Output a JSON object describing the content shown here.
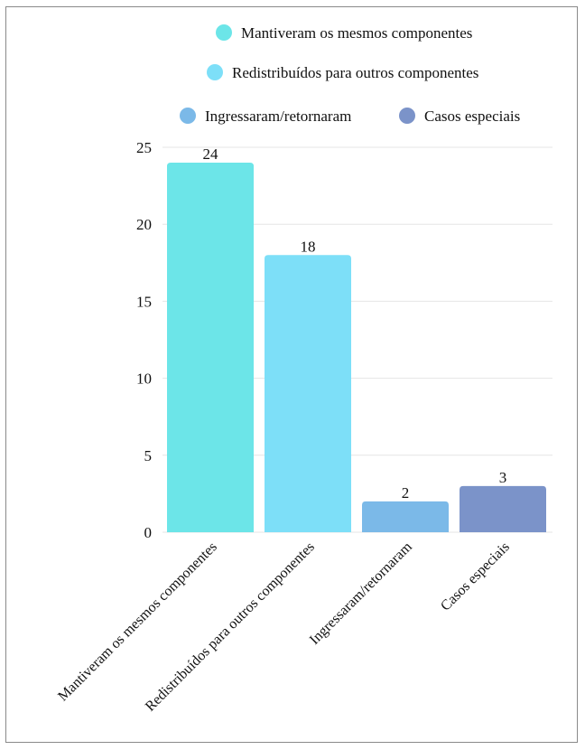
{
  "chart_data": {
    "type": "bar",
    "title": "",
    "xlabel": "",
    "ylabel": "",
    "categories": [
      "Mantiveram os mesmos componentes",
      "Redistribuídos para outros componentes",
      "Ingressaram/retornaram",
      "Casos especiais"
    ],
    "values": [
      24,
      18,
      2,
      3
    ],
    "colors": [
      "#6ce5e8",
      "#7ddff8",
      "#7bb9e8",
      "#7b93c9"
    ],
    "ylim": [
      0,
      25
    ],
    "yticks": [
      0,
      5,
      10,
      15,
      20,
      25
    ],
    "grid": true,
    "data_labels": true,
    "legend": {
      "placement": "top",
      "entries": [
        {
          "label": "Mantiveram os mesmos componentes",
          "color": "#6ce5e8"
        },
        {
          "label": "Redistribuídos para outros componentes",
          "color": "#7ddff8"
        },
        {
          "label": "Ingressaram/retornaram",
          "color": "#7bb9e8"
        },
        {
          "label": "Casos especiais",
          "color": "#7b93c9"
        }
      ]
    }
  }
}
